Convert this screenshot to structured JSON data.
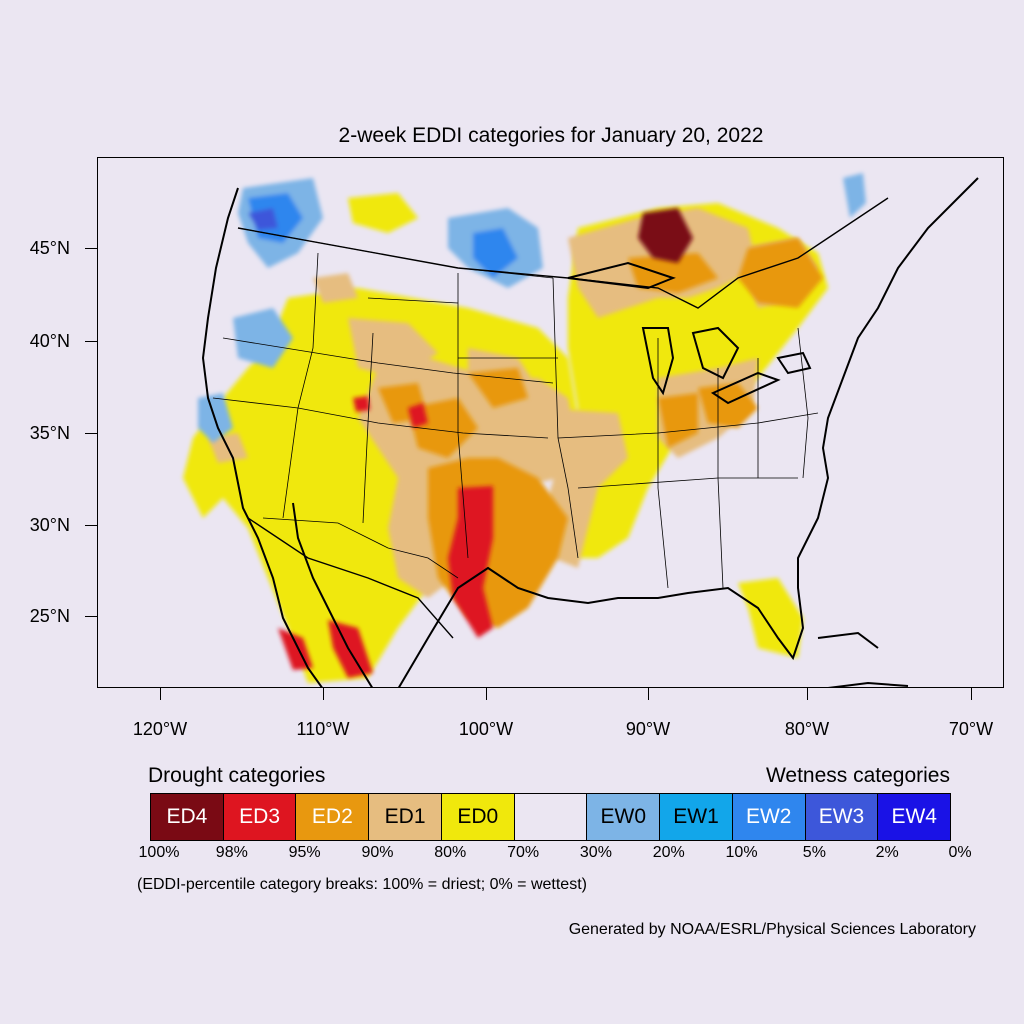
{
  "title": "2-week EDDI categories for January 20, 2022",
  "axes": {
    "lat_labels": [
      "45°N",
      "40°N",
      "35°N",
      "30°N",
      "25°N"
    ],
    "lon_labels": [
      "120°W",
      "110°W",
      "100°W",
      "90°W",
      "80°W",
      "70°W"
    ]
  },
  "legend": {
    "drought_title": "Drought categories",
    "wetness_title": "Wetness categories",
    "categories": [
      {
        "label": "ED4",
        "color": "#7a0a14",
        "text_color": "#ffffff"
      },
      {
        "label": "ED3",
        "color": "#de1520",
        "text_color": "#ffffff"
      },
      {
        "label": "ED2",
        "color": "#e8980f",
        "text_color": "#ffffff"
      },
      {
        "label": "ED1",
        "color": "#e6bd80",
        "text_color": "#000000"
      },
      {
        "label": "ED0",
        "color": "#f0e80c",
        "text_color": "#000000"
      },
      {
        "label": "",
        "color": "#ebe6f2",
        "text_color": "#000000"
      },
      {
        "label": "EW0",
        "color": "#7db4e6",
        "text_color": "#000000"
      },
      {
        "label": "EW1",
        "color": "#12a6ea",
        "text_color": "#000000"
      },
      {
        "label": "EW2",
        "color": "#2f86ee",
        "text_color": "#ffffff"
      },
      {
        "label": "EW3",
        "color": "#3d57da",
        "text_color": "#ffffff"
      },
      {
        "label": "EW4",
        "color": "#1a12e6",
        "text_color": "#ffffff"
      }
    ],
    "percentiles": [
      "100%",
      "98%",
      "95%",
      "90%",
      "80%",
      "70%",
      "30%",
      "20%",
      "10%",
      "5%",
      "2%",
      "0%"
    ]
  },
  "note": "(EDDI-percentile category breaks: 100% = driest; 0% = wettest)",
  "credit": "Generated by NOAA/ESRL/Physical Sciences Laboratory"
}
